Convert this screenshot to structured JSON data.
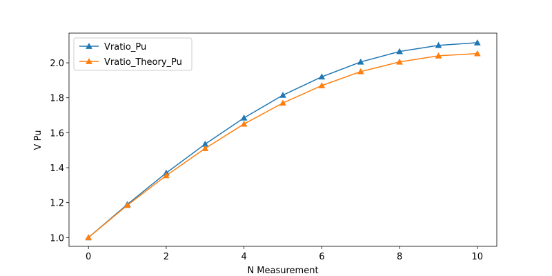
{
  "chart_data": {
    "type": "line",
    "title": "",
    "xlabel": "N Measurement",
    "ylabel": "V Pu",
    "xlim": [
      -0.5,
      10.5
    ],
    "ylim": [
      0.95,
      2.17
    ],
    "xticks": [
      0,
      2,
      4,
      6,
      8,
      10
    ],
    "yticks": [
      1.0,
      1.2,
      1.4,
      1.6,
      1.8,
      2.0
    ],
    "ytick_labels": [
      "1.0",
      "1.2",
      "1.4",
      "1.6",
      "1.8",
      "2.0"
    ],
    "grid": false,
    "legend_position": "upper-left",
    "x": [
      0,
      1,
      2,
      3,
      4,
      5,
      6,
      7,
      8,
      9,
      10
    ],
    "series": [
      {
        "name": "Vratio_Pu",
        "color": "#1f77b4",
        "marker": "triangle-up",
        "values": [
          1.0,
          1.19,
          1.37,
          1.535,
          1.685,
          1.815,
          1.92,
          2.005,
          2.065,
          2.1,
          2.115
        ]
      },
      {
        "name": "Vratio_Theory_Pu",
        "color": "#ff7f0e",
        "marker": "triangle-up",
        "values": [
          1.0,
          1.185,
          1.355,
          1.51,
          1.65,
          1.77,
          1.87,
          1.95,
          2.005,
          2.04,
          2.053
        ]
      }
    ]
  }
}
